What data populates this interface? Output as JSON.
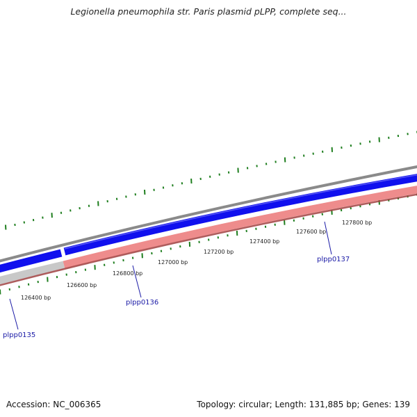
{
  "title": "Legionella pneumophila str. Paris plasmid pLPP, complete seq...",
  "accession": "Accession: NC_006365",
  "summary": "Topology: circular; Length: 131,885 bp; Genes: 139",
  "colors": {
    "backbone": "#8a8a8a",
    "forward_gene": "#1010ee",
    "reverse_gene": "#ee8c8c",
    "reverse_edge": "#a04040",
    "unknown_gene": "#c8c8c8",
    "ticks": "#1e7e1e",
    "gene_label": "#1a1aa6"
  },
  "scale_labels": [
    "126400 bp",
    "126600 bp",
    "126800 bp",
    "127000 bp",
    "127200 bp",
    "127400 bp",
    "127600 bp",
    "127800 bp"
  ],
  "genes": [
    "plpp0135",
    "plpp0136",
    "plpp0137"
  ]
}
